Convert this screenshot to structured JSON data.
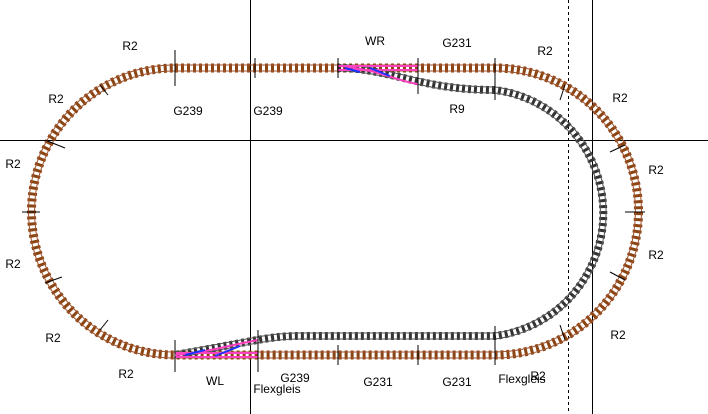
{
  "labels": [
    "R2",
    "WR",
    "G231",
    "R2",
    "R2",
    "G239",
    "G239",
    "R9",
    "R2",
    "R2",
    "R2",
    "R2",
    "R2",
    "R2",
    "R2",
    "R2",
    "WL",
    "G239",
    "Flexgleis",
    "G231",
    "G231",
    "Flexgleis",
    "R2"
  ]
}
